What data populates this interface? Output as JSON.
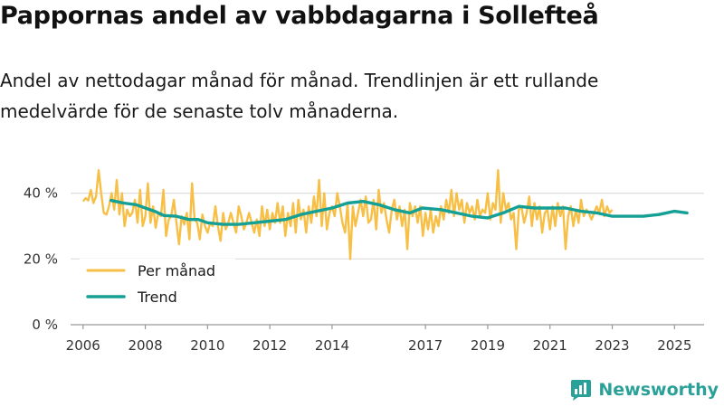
{
  "header": {
    "title": "Pappornas andel av vabbdagarna i Sollefteå",
    "subtitle": "Andel av nettodagar månad för månad. Trendlinjen är ett rullande medelvärde för de senaste tolv månaderna."
  },
  "colors": {
    "monthly": "#f7bf45",
    "trend": "#14a095",
    "grid": "#dddddd",
    "brand": "#2aa198"
  },
  "brand": {
    "name": "Newsworthy",
    "icon": "bar-chart-logo-icon"
  },
  "chart_data": {
    "type": "line",
    "title": "Pappornas andel av vabbdagarna i Sollefteå",
    "xlabel": "",
    "ylabel": "",
    "x_unit": "year (decimal)",
    "ylim": [
      0,
      52
    ],
    "xlim": [
      2005.6,
      2025.95
    ],
    "y_ticks": [
      {
        "value": 0,
        "label": "0 %"
      },
      {
        "value": 20,
        "label": "20 %"
      },
      {
        "value": 40,
        "label": "40 %"
      }
    ],
    "x_ticks": [
      {
        "value": 2006,
        "label": "2006"
      },
      {
        "value": 2008,
        "label": "2008"
      },
      {
        "value": 2010,
        "label": "2010"
      },
      {
        "value": 2012,
        "label": "2012"
      },
      {
        "value": 2014,
        "label": "2014"
      },
      {
        "value": 2017,
        "label": "2017"
      },
      {
        "value": 2019,
        "label": "2019"
      },
      {
        "value": 2021,
        "label": "2021"
      },
      {
        "value": 2023,
        "label": "2023"
      },
      {
        "value": 2025,
        "label": "2025"
      }
    ],
    "legend": {
      "placement": "bottom-left",
      "entries": [
        {
          "name": "Per månad",
          "series": "monthly"
        },
        {
          "name": "Trend",
          "series": "trend"
        }
      ]
    },
    "series": [
      {
        "name": "Per månad",
        "key": "monthly",
        "x_start": 2006.0,
        "x_step": 0.0833333,
        "values": [
          37.5,
          38.5,
          37.8,
          41,
          37,
          39,
          47,
          40,
          34,
          33.5,
          36,
          40,
          35,
          44,
          33.5,
          40,
          30,
          35,
          33,
          34,
          38,
          31,
          41,
          30,
          33,
          43,
          31,
          36,
          29.5,
          34,
          33,
          41,
          27,
          32,
          33,
          38,
          31,
          24.5,
          33,
          30.5,
          34,
          26,
          43,
          32,
          31,
          26,
          33.5,
          30,
          28,
          31,
          30,
          36,
          30,
          25.5,
          34,
          29,
          31,
          34,
          31,
          28,
          36,
          33,
          29,
          31,
          34,
          31,
          28,
          32,
          27,
          36,
          30,
          35,
          29,
          34,
          31,
          37,
          31,
          36,
          27,
          34,
          30,
          37,
          28,
          38,
          32,
          35,
          28,
          36,
          31,
          39,
          33,
          44,
          30,
          40,
          29,
          34,
          36,
          33,
          40,
          36,
          31,
          28,
          37,
          20,
          36,
          30,
          34,
          38,
          33,
          39,
          31,
          32,
          38,
          29,
          41,
          34,
          37,
          32,
          28,
          35,
          38,
          32,
          36,
          30,
          35,
          23,
          37,
          33,
          36,
          31,
          36,
          27,
          34,
          29,
          35,
          28,
          33,
          30,
          36,
          32,
          38,
          34,
          41,
          33,
          40,
          35,
          38,
          31,
          37,
          34,
          36,
          32,
          38,
          33,
          35,
          34,
          40,
          32,
          37,
          35,
          47,
          31,
          40,
          35,
          37,
          32,
          34,
          23,
          35,
          36,
          31,
          34,
          39,
          30,
          37,
          32,
          36,
          28,
          34,
          35,
          29,
          36,
          30,
          37,
          33,
          36,
          23,
          33,
          36,
          30,
          35,
          31,
          38,
          33,
          35,
          34,
          32,
          34,
          36,
          34,
          38,
          33,
          36,
          34,
          35
        ]
      },
      {
        "name": "Trend",
        "key": "trend",
        "points": [
          [
            2006.9,
            37.8
          ],
          [
            2007.3,
            37.0
          ],
          [
            2007.7,
            36.5
          ],
          [
            2008.0,
            35.5
          ],
          [
            2008.3,
            34.5
          ],
          [
            2008.6,
            33.2
          ],
          [
            2009.0,
            33.0
          ],
          [
            2009.4,
            32.0
          ],
          [
            2009.7,
            32.0
          ],
          [
            2010.0,
            31.0
          ],
          [
            2010.5,
            30.5
          ],
          [
            2011.0,
            30.5
          ],
          [
            2011.5,
            31.0
          ],
          [
            2012.0,
            31.5
          ],
          [
            2012.5,
            32.0
          ],
          [
            2013.0,
            33.5
          ],
          [
            2013.5,
            34.5
          ],
          [
            2014.0,
            35.5
          ],
          [
            2014.5,
            37.0
          ],
          [
            2015.0,
            37.5
          ],
          [
            2015.5,
            36.5
          ],
          [
            2016.0,
            35.0
          ],
          [
            2016.5,
            34.0
          ],
          [
            2016.9,
            35.5
          ],
          [
            2017.5,
            35.0
          ],
          [
            2018.0,
            34.0
          ],
          [
            2018.5,
            33.0
          ],
          [
            2019.0,
            32.5
          ],
          [
            2019.5,
            34.0
          ],
          [
            2020.0,
            36.0
          ],
          [
            2020.5,
            35.5
          ],
          [
            2021.0,
            35.5
          ],
          [
            2021.5,
            35.5
          ],
          [
            2022.0,
            34.5
          ],
          [
            2022.5,
            34.0
          ],
          [
            2023.0,
            33.0
          ],
          [
            2023.5,
            33.0
          ],
          [
            2024.0,
            33.0
          ],
          [
            2024.5,
            33.5
          ],
          [
            2025.0,
            34.5
          ],
          [
            2025.4,
            34.0
          ]
        ]
      }
    ]
  }
}
